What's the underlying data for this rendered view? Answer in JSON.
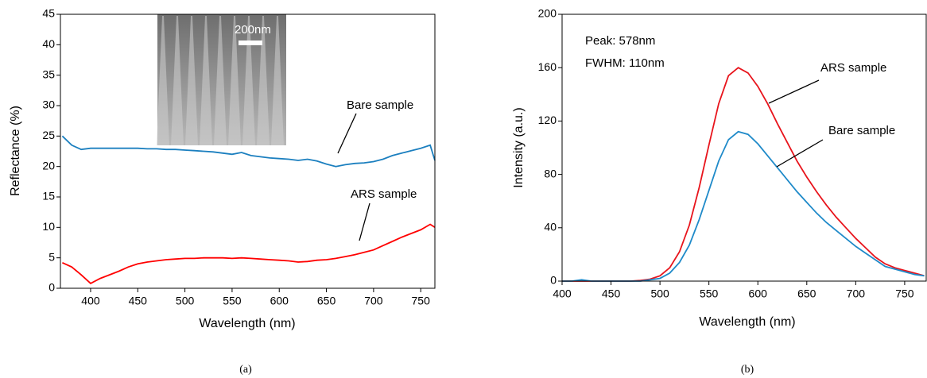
{
  "chart_data": [
    {
      "type": "line",
      "xlabel": "Wavelength (nm)",
      "ylabel": "Reflectance (%)",
      "caption": "(a)",
      "x": [
        370,
        380,
        390,
        400,
        410,
        420,
        430,
        440,
        450,
        460,
        470,
        480,
        490,
        500,
        510,
        520,
        530,
        540,
        550,
        560,
        570,
        580,
        590,
        600,
        610,
        620,
        630,
        640,
        650,
        660,
        670,
        680,
        690,
        700,
        710,
        720,
        730,
        740,
        750,
        760,
        765
      ],
      "series": [
        {
          "name": "Bare sample",
          "color": "#1b7fbf",
          "values": [
            25,
            23.5,
            22.8,
            23,
            23,
            23,
            23,
            23,
            23,
            22.9,
            22.9,
            22.8,
            22.8,
            22.7,
            22.6,
            22.5,
            22.4,
            22.2,
            22,
            22.3,
            21.8,
            21.6,
            21.4,
            21.3,
            21.2,
            21,
            21.2,
            20.9,
            20.4,
            20,
            20.3,
            20.5,
            20.6,
            20.8,
            21.2,
            21.8,
            22.2,
            22.6,
            23,
            23.5,
            21
          ]
        },
        {
          "name": "ARS sample",
          "color": "#ff0000",
          "values": [
            4.2,
            3.5,
            2.2,
            0.8,
            1.6,
            2.2,
            2.8,
            3.5,
            4,
            4.3,
            4.5,
            4.7,
            4.8,
            4.9,
            4.9,
            5,
            5,
            5,
            4.9,
            5,
            4.9,
            4.8,
            4.7,
            4.6,
            4.5,
            4.3,
            4.4,
            4.6,
            4.7,
            4.9,
            5.2,
            5.5,
            5.9,
            6.3,
            7,
            7.7,
            8.4,
            9,
            9.6,
            10.5,
            10
          ]
        }
      ],
      "xlim": [
        368,
        765
      ],
      "ylim": [
        0,
        45
      ],
      "xticks": [
        400,
        450,
        500,
        550,
        600,
        650,
        700,
        750
      ],
      "yticks": [
        0,
        5,
        10,
        15,
        20,
        25,
        30,
        35,
        40,
        45
      ],
      "annotations": [
        "Bare sample",
        "ARS sample",
        "200nm"
      ]
    },
    {
      "type": "line",
      "xlabel": "Wavelength (nm)",
      "ylabel": "Intensity (a.u.)",
      "caption": "(b)",
      "x": [
        400,
        410,
        420,
        430,
        440,
        450,
        460,
        470,
        480,
        490,
        500,
        510,
        520,
        530,
        540,
        550,
        560,
        570,
        580,
        590,
        600,
        610,
        620,
        630,
        640,
        650,
        660,
        670,
        680,
        690,
        700,
        710,
        720,
        730,
        740,
        750,
        760,
        770
      ],
      "series": [
        {
          "name": "ARS sample",
          "color": "#e8141c",
          "values": [
            0,
            0,
            0,
            0,
            0,
            0,
            0,
            0,
            0.5,
            1.5,
            4,
            10,
            22,
            42,
            70,
            102,
            133,
            154,
            160,
            156,
            146,
            133,
            118,
            104,
            90,
            78,
            67,
            57,
            48,
            40,
            32,
            25,
            18,
            13,
            10,
            8,
            6,
            4
          ]
        },
        {
          "name": "Bare sample",
          "color": "#1f8ac9",
          "values": [
            0,
            0,
            1,
            0,
            0,
            0,
            0,
            0,
            0,
            1,
            2,
            6,
            14,
            27,
            46,
            68,
            90,
            106,
            112,
            110,
            103,
            94,
            85,
            76,
            67,
            59,
            51,
            44,
            38,
            32,
            26,
            21,
            16,
            11,
            9,
            7,
            5,
            4
          ]
        }
      ],
      "xlim": [
        400,
        772
      ],
      "ylim": [
        0,
        200
      ],
      "xticks": [
        400,
        450,
        500,
        550,
        600,
        650,
        700,
        750
      ],
      "yticks": [
        0,
        40,
        80,
        120,
        160,
        200
      ],
      "annotations": [
        "Peak: 578nm",
        "FWHM: 110nm",
        "ARS sample",
        "Bare sample"
      ]
    }
  ]
}
